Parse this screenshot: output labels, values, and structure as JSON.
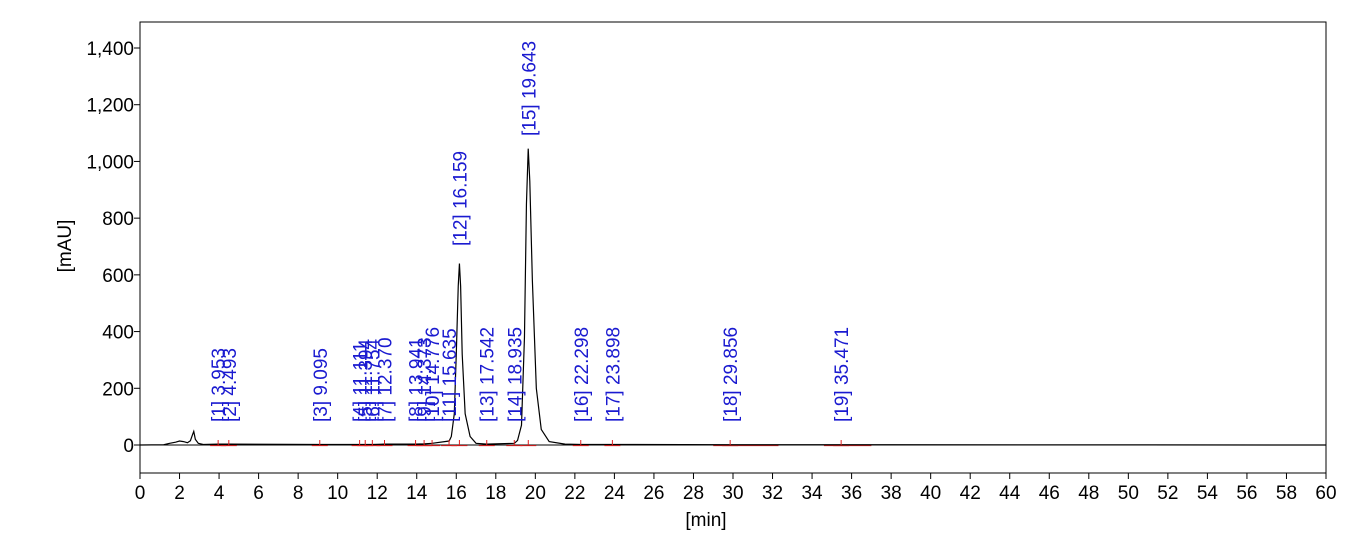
{
  "chart_data": {
    "type": "line",
    "title": "",
    "xlabel": "[min]",
    "ylabel": "[mAU]",
    "xlim": [
      0,
      60
    ],
    "ylim": [
      -100,
      1500
    ],
    "x_ticks": [
      0,
      2,
      4,
      6,
      8,
      10,
      12,
      14,
      16,
      18,
      20,
      22,
      24,
      26,
      28,
      30,
      32,
      34,
      36,
      38,
      40,
      42,
      44,
      46,
      48,
      50,
      52,
      54,
      56,
      58,
      60
    ],
    "y_ticks": [
      0,
      200,
      400,
      600,
      800,
      1000,
      1200,
      1400
    ],
    "y_tick_labels": [
      "0",
      "200",
      "400",
      "600",
      "800",
      "1,000",
      "1,200",
      "1,400"
    ],
    "grid": false,
    "legend": "none",
    "colors": {
      "trace": "#000000",
      "peak_label": "#1a1ad0",
      "baseline": "#e02020",
      "axis": "#000000"
    },
    "series": [
      {
        "x": [
          0.0,
          1.2,
          1.5,
          1.8,
          2.0,
          2.2,
          2.4,
          2.55,
          2.65,
          2.72,
          2.8,
          2.95,
          3.2,
          3.95,
          4.49,
          9.1,
          11.11,
          11.39,
          11.75,
          12.37,
          13.94,
          14.37,
          14.78,
          15.64,
          15.75,
          15.9,
          16.0,
          16.1,
          16.16,
          16.22,
          16.3,
          16.45,
          16.7,
          17.0,
          17.54,
          18.94,
          19.1,
          19.3,
          19.45,
          19.55,
          19.64,
          19.72,
          19.85,
          20.05,
          20.3,
          20.7,
          21.5,
          22.3,
          23.9,
          29.86,
          35.47,
          60.0
        ],
        "y": [
          0,
          1,
          6,
          10,
          14,
          12,
          8,
          15,
          35,
          48,
          20,
          6,
          2,
          3,
          3,
          2,
          2,
          2,
          2,
          3,
          3,
          4,
          6,
          14,
          30,
          110,
          320,
          560,
          640,
          560,
          320,
          110,
          30,
          6,
          3,
          6,
          16,
          70,
          380,
          850,
          1045,
          930,
          580,
          200,
          55,
          12,
          3,
          2,
          2,
          1,
          1,
          0
        ]
      }
    ],
    "peaks": [
      {
        "id": "[1]",
        "rt": "3.953",
        "x": 3.953
      },
      {
        "id": "[2]",
        "rt": "4.493",
        "x": 4.493
      },
      {
        "id": "[3]",
        "rt": "9.095",
        "x": 9.095
      },
      {
        "id": "[4]",
        "rt": "11.111",
        "x": 11.111
      },
      {
        "id": "[5]",
        "rt": "11.394",
        "x": 11.394
      },
      {
        "id": "[6]",
        "rt": "11.754",
        "x": 11.754
      },
      {
        "id": "[7]",
        "rt": "12.370",
        "x": 12.37
      },
      {
        "id": "[8]",
        "rt": "13.941",
        "x": 13.941
      },
      {
        "id": "[9]",
        "rt": "14.373",
        "x": 14.373
      },
      {
        "id": "[10]",
        "rt": "14.776",
        "x": 14.776
      },
      {
        "id": "[11]",
        "rt": "15.635",
        "x": 15.635
      },
      {
        "id": "[12]",
        "rt": "16.159",
        "x": 16.159
      },
      {
        "id": "[13]",
        "rt": "17.542",
        "x": 17.542
      },
      {
        "id": "[14]",
        "rt": "18.935",
        "x": 18.935
      },
      {
        "id": "[15]",
        "rt": "19.643",
        "x": 19.643
      },
      {
        "id": "[16]",
        "rt": "22.298",
        "x": 22.298
      },
      {
        "id": "[17]",
        "rt": "23.898",
        "x": 23.898
      },
      {
        "id": "[18]",
        "rt": "29.856",
        "x": 29.856
      },
      {
        "id": "[19]",
        "rt": "35.471",
        "x": 35.471
      }
    ]
  }
}
